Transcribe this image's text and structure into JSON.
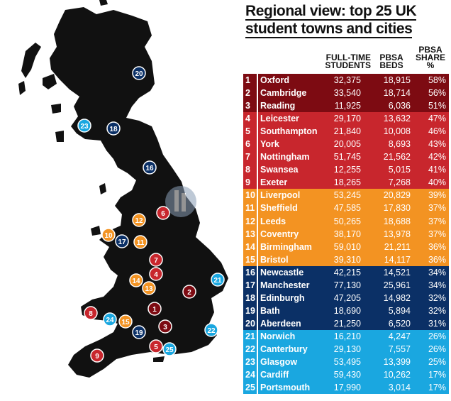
{
  "title": {
    "line1": "Regional view: top 25 UK",
    "line2": "student towns and cities"
  },
  "columns": {
    "students": [
      "FULL-TIME",
      "STUDENTS"
    ],
    "beds": [
      "PBSA",
      "BEDS"
    ],
    "share": [
      "PBSA",
      "SHARE",
      "%"
    ]
  },
  "colors": {
    "dark_red": "#7d0b12",
    "red": "#c8262d",
    "orange": "#f39322",
    "navy": "#0b3066",
    "light_blue": "#1aa7e0",
    "land": "#111111"
  },
  "rows": [
    {
      "rank": "1",
      "city": "Oxford",
      "students": "32,375",
      "beds": "18,915",
      "share": "58%",
      "group": "dark_red"
    },
    {
      "rank": "2",
      "city": "Cambridge",
      "students": "33,540",
      "beds": "18,714",
      "share": "56%",
      "group": "dark_red"
    },
    {
      "rank": "3",
      "city": "Reading",
      "students": "11,925",
      "beds": "6,036",
      "share": "51%",
      "group": "dark_red"
    },
    {
      "rank": "4",
      "city": "Leicester",
      "students": "29,170",
      "beds": "13,632",
      "share": "47%",
      "group": "red"
    },
    {
      "rank": "5",
      "city": "Southampton",
      "students": "21,840",
      "beds": "10,008",
      "share": "46%",
      "group": "red"
    },
    {
      "rank": "6",
      "city": "York",
      "students": "20,005",
      "beds": "8,693",
      "share": "43%",
      "group": "red"
    },
    {
      "rank": "7",
      "city": "Nottingham",
      "students": "51,745",
      "beds": "21,562",
      "share": "42%",
      "group": "red"
    },
    {
      "rank": "8",
      "city": "Swansea",
      "students": "12,255",
      "beds": "5,015",
      "share": "41%",
      "group": "red"
    },
    {
      "rank": "9",
      "city": "Exeter",
      "students": "18,265",
      "beds": "7,268",
      "share": "40%",
      "group": "red"
    },
    {
      "rank": "10",
      "city": "Liverpool",
      "students": "53,245",
      "beds": "20,829",
      "share": "39%",
      "group": "orange"
    },
    {
      "rank": "11",
      "city": "Sheffield",
      "students": "47,585",
      "beds": "17,830",
      "share": "37%",
      "group": "orange"
    },
    {
      "rank": "12",
      "city": "Leeds",
      "students": "50,265",
      "beds": "18,688",
      "share": "37%",
      "group": "orange"
    },
    {
      "rank": "13",
      "city": "Coventry",
      "students": "38,170",
      "beds": "13,978",
      "share": "37%",
      "group": "orange"
    },
    {
      "rank": "14",
      "city": "Birmingham",
      "students": "59,010",
      "beds": "21,211",
      "share": "36%",
      "group": "orange"
    },
    {
      "rank": "15",
      "city": "Bristol",
      "students": "39,310",
      "beds": "14,117",
      "share": "36%",
      "group": "orange"
    },
    {
      "rank": "16",
      "city": "Newcastle",
      "students": "42,215",
      "beds": "14,521",
      "share": "34%",
      "group": "navy"
    },
    {
      "rank": "17",
      "city": "Manchester",
      "students": "77,130",
      "beds": "25,961",
      "share": "34%",
      "group": "navy"
    },
    {
      "rank": "18",
      "city": "Edinburgh",
      "students": "47,205",
      "beds": "14,982",
      "share": "32%",
      "group": "navy"
    },
    {
      "rank": "19",
      "city": "Bath",
      "students": "18,690",
      "beds": "5,894",
      "share": "32%",
      "group": "navy"
    },
    {
      "rank": "20",
      "city": "Aberdeen",
      "students": "21,250",
      "beds": "6,520",
      "share": "31%",
      "group": "navy"
    },
    {
      "rank": "21",
      "city": "Norwich",
      "students": "16,210",
      "beds": "4,247",
      "share": "26%",
      "group": "light_blue"
    },
    {
      "rank": "22",
      "city": "Canterbury",
      "students": "29,130",
      "beds": "7,557",
      "share": "26%",
      "group": "light_blue"
    },
    {
      "rank": "23",
      "city": "Glasgow",
      "students": "53,495",
      "beds": "13,399",
      "share": "25%",
      "group": "light_blue"
    },
    {
      "rank": "24",
      "city": "Cardiff",
      "students": "59,430",
      "beds": "10,262",
      "share": "17%",
      "group": "light_blue"
    },
    {
      "rank": "25",
      "city": "Portsmouth",
      "students": "17,990",
      "beds": "3,014",
      "share": "17%",
      "group": "light_blue"
    }
  ]
}
